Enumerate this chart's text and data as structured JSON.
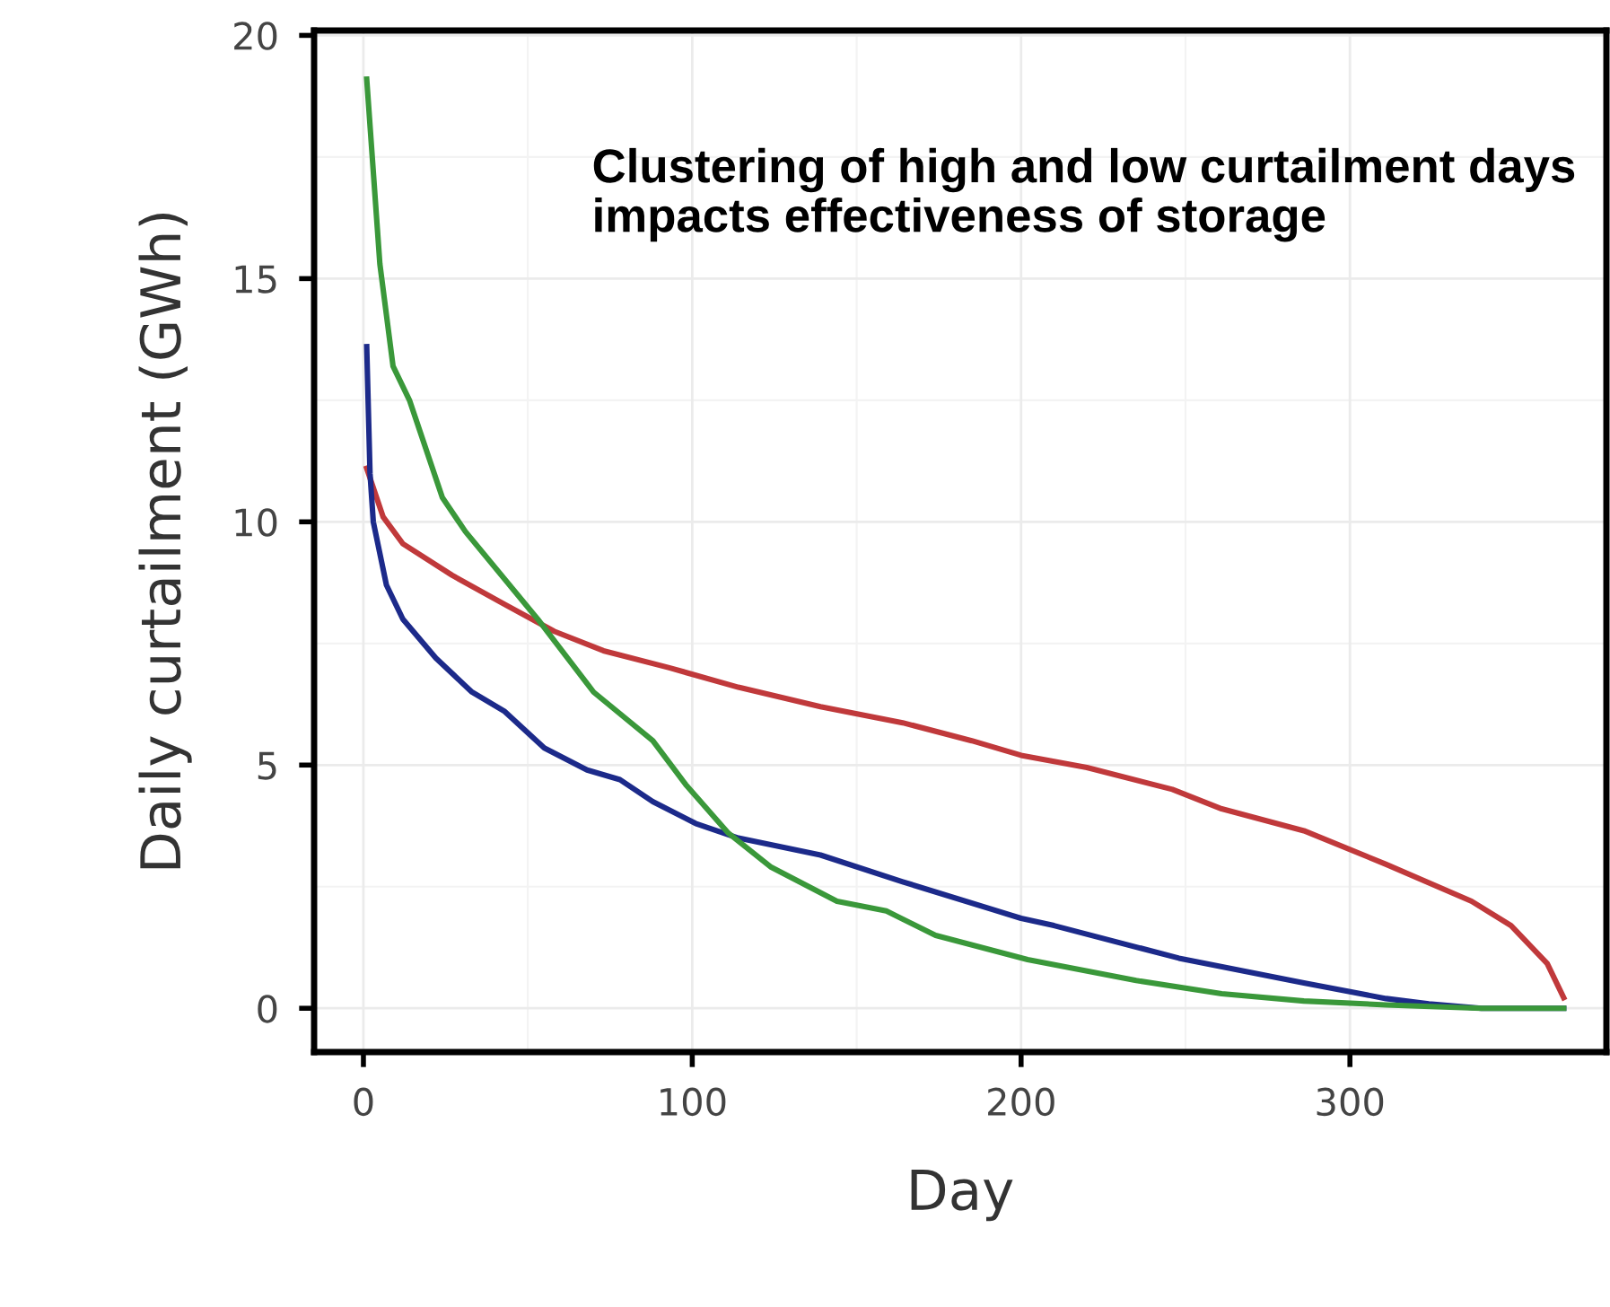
{
  "chart_data": {
    "type": "line",
    "xlabel": "Day",
    "ylabel": "Daily curtailment (GWh)",
    "annotations": [
      "Clustering of high and low curtailment days impacts effectiveness of storage"
    ],
    "xlim": [
      -15,
      378
    ],
    "ylim": [
      -0.9,
      20.1
    ],
    "xticks": [
      0,
      100,
      200,
      300
    ],
    "yticks": [
      0,
      5,
      10,
      15,
      20
    ],
    "grid": true,
    "marker": "none",
    "line_style": "solid",
    "series": [
      {
        "color": "#c0393b",
        "x": [
          1,
          2,
          6,
          12,
          27,
          43,
          58,
          73,
          93,
          114,
          139,
          164,
          185,
          200,
          220,
          246,
          261,
          286,
          311,
          337,
          349,
          360,
          365
        ],
        "values": [
          11.1,
          10.9,
          10.1,
          9.55,
          8.9,
          8.3,
          7.75,
          7.35,
          7.0,
          6.6,
          6.2,
          5.87,
          5.5,
          5.2,
          4.95,
          4.5,
          4.1,
          3.65,
          2.96,
          2.2,
          1.7,
          0.92,
          0.22
        ]
      },
      {
        "color": "#1c2a8a",
        "x": [
          1,
          2,
          3,
          7,
          12,
          22,
          33,
          43,
          55,
          68,
          78,
          88,
          101,
          114,
          139,
          164,
          200,
          210,
          248,
          286,
          311,
          324,
          340,
          365
        ],
        "values": [
          13.6,
          11.0,
          10.0,
          8.7,
          8.0,
          7.2,
          6.5,
          6.1,
          5.35,
          4.9,
          4.7,
          4.25,
          3.8,
          3.5,
          3.15,
          2.6,
          1.85,
          1.7,
          1.03,
          0.52,
          0.2,
          0.09,
          0.0,
          0.0
        ]
      },
      {
        "color": "#3a983a",
        "x": [
          1,
          5,
          9,
          14,
          24,
          31,
          53,
          70,
          88,
          98,
          111,
          124,
          144,
          159,
          174,
          202,
          235,
          261,
          286,
          311,
          340,
          365
        ],
        "values": [
          19.1,
          15.3,
          13.2,
          12.5,
          10.5,
          9.8,
          8.0,
          6.5,
          5.5,
          4.6,
          3.6,
          2.9,
          2.2,
          2.0,
          1.5,
          1.0,
          0.57,
          0.3,
          0.15,
          0.07,
          0.0,
          0.0
        ]
      }
    ]
  }
}
